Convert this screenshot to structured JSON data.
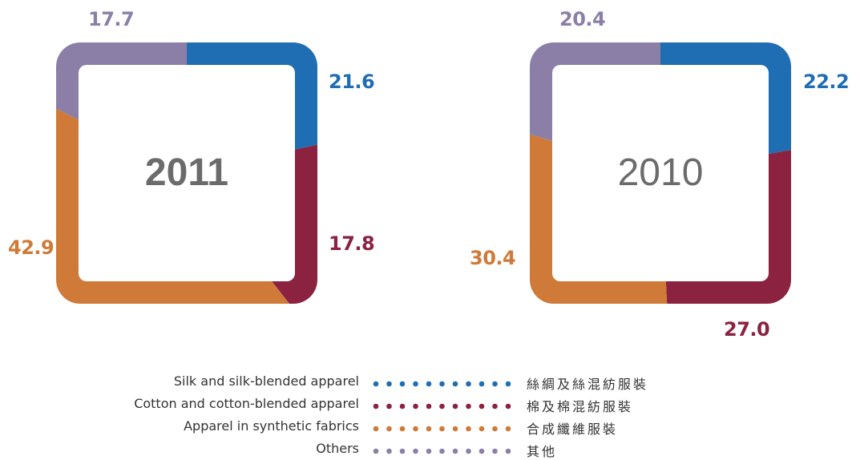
{
  "chart_data": [
    {
      "type": "pie",
      "title": "2011",
      "categories": [
        "Silk and silk-blended apparel",
        "Cotton and cotton-blended apparel",
        "Apparel in synthetic fabrics",
        "Others"
      ],
      "values": [
        21.6,
        17.8,
        42.9,
        17.7
      ],
      "value_labels": [
        "21.6",
        "17.8",
        "42.9",
        "17.7"
      ],
      "colors": [
        "#1f6db3",
        "#8a2240",
        "#cf7a38",
        "#8b7fa8"
      ]
    },
    {
      "type": "pie",
      "title": "2010",
      "categories": [
        "Silk and silk-blended apparel",
        "Cotton and cotton-blended apparel",
        "Apparel in synthetic fabrics",
        "Others"
      ],
      "values": [
        22.2,
        27.0,
        30.4,
        20.4
      ],
      "value_labels": [
        "22.2",
        "27.0",
        "30.4",
        "20.4"
      ],
      "colors": [
        "#1f6db3",
        "#8a2240",
        "#cf7a38",
        "#8b7fa8"
      ]
    }
  ],
  "legend": {
    "placement": "bottom-center",
    "items": [
      {
        "en": "Silk and silk-blended apparel",
        "zh": "絲綢及絲混紡服裝",
        "color": "#1f6db3"
      },
      {
        "en": "Cotton and cotton-blended apparel",
        "zh": "棉及棉混紡服裝",
        "color": "#8a2240"
      },
      {
        "en": "Apparel in synthetic fabrics",
        "zh": "合成纖維服裝",
        "color": "#cf7a38"
      },
      {
        "en": "Others",
        "zh": "其他",
        "color": "#8b7fa8"
      }
    ]
  }
}
